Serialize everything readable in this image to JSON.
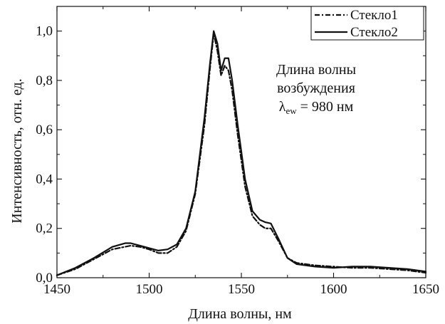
{
  "chart_data": {
    "type": "line",
    "xlabel": "Длина волны, нм",
    "ylabel": "Интенсивность, отн. ед.",
    "xlim": [
      1450,
      1650
    ],
    "ylim": [
      0,
      1.1
    ],
    "x_ticks": [
      1450,
      1500,
      1550,
      1600,
      1650
    ],
    "y_ticks": [
      0,
      0.2,
      0.4,
      0.6,
      0.8,
      1.0
    ],
    "y_tick_labels": [
      "0,0",
      "0,2",
      "0,4",
      "0,6",
      "0,8",
      "1,0"
    ],
    "grid": false,
    "legend_position": "top-right",
    "annotation": {
      "line1": "Длина волны",
      "line2": "возбуждения",
      "lambda": "λ",
      "subscript": "ew",
      "value": " = 980 нм"
    },
    "series": [
      {
        "name": "Стекло1",
        "style": "dash-dot",
        "color": "#111111",
        "x": [
          1450,
          1460,
          1470,
          1480,
          1490,
          1495,
          1500,
          1505,
          1510,
          1515,
          1520,
          1525,
          1530,
          1533,
          1535,
          1537,
          1539,
          1541,
          1543,
          1545,
          1548,
          1552,
          1556,
          1560,
          1563,
          1566,
          1570,
          1575,
          1580,
          1590,
          1600,
          1610,
          1620,
          1630,
          1640,
          1650
        ],
        "y": [
          0.01,
          0.035,
          0.075,
          0.115,
          0.13,
          0.125,
          0.115,
          0.1,
          0.1,
          0.125,
          0.19,
          0.34,
          0.62,
          0.85,
          0.99,
          0.92,
          0.82,
          0.86,
          0.84,
          0.76,
          0.58,
          0.37,
          0.25,
          0.215,
          0.2,
          0.2,
          0.15,
          0.08,
          0.06,
          0.05,
          0.045,
          0.04,
          0.04,
          0.035,
          0.03,
          0.02
        ]
      },
      {
        "name": "Стекло2",
        "style": "solid",
        "color": "#111111",
        "x": [
          1450,
          1460,
          1470,
          1480,
          1487,
          1490,
          1495,
          1500,
          1505,
          1510,
          1515,
          1520,
          1525,
          1530,
          1533,
          1535,
          1537,
          1539,
          1541,
          1543,
          1545,
          1548,
          1552,
          1556,
          1560,
          1563,
          1566,
          1570,
          1575,
          1580,
          1590,
          1600,
          1610,
          1620,
          1630,
          1640,
          1650
        ],
        "y": [
          0.01,
          0.04,
          0.08,
          0.125,
          0.14,
          0.14,
          0.13,
          0.12,
          0.11,
          0.115,
          0.135,
          0.2,
          0.35,
          0.65,
          0.87,
          1.0,
          0.95,
          0.84,
          0.89,
          0.89,
          0.8,
          0.62,
          0.4,
          0.27,
          0.235,
          0.225,
          0.22,
          0.16,
          0.08,
          0.055,
          0.045,
          0.04,
          0.045,
          0.045,
          0.04,
          0.035,
          0.025
        ]
      }
    ]
  }
}
